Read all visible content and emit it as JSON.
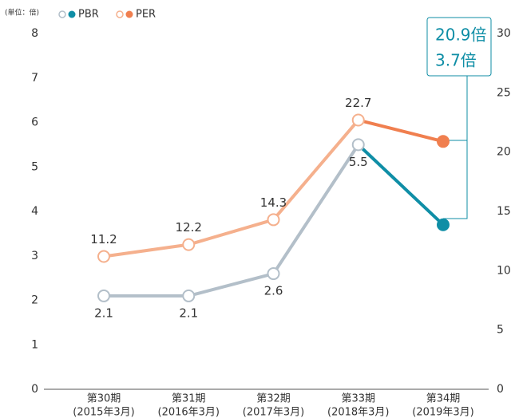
{
  "chart_data": {
    "type": "line",
    "unit_label": "(単位：倍)",
    "categories": [
      [
        "第30期",
        "(2015年3月)"
      ],
      [
        "第31期",
        "(2016年3月)"
      ],
      [
        "第32期",
        "(2017年3月)"
      ],
      [
        "第33期",
        "(2018年3月)"
      ],
      [
        "第34期",
        "(2019年3月)"
      ]
    ],
    "series": [
      {
        "name": "PBR",
        "color": "#0f8ea6",
        "past_color": "#b3bfc9",
        "axis": "y",
        "values": [
          2.1,
          2.1,
          2.6,
          5.5,
          3.7
        ],
        "value_labels": [
          "2.1",
          "2.1",
          "2.6",
          "5.5",
          "3.7倍"
        ]
      },
      {
        "name": "PER",
        "color": "#f07f4f",
        "past_color": "#f5b08d",
        "axis": "y2",
        "values": [
          11.2,
          12.2,
          14.3,
          22.7,
          20.9
        ],
        "value_labels": [
          "11.2",
          "12.2",
          "14.3",
          "22.7",
          "20.9倍"
        ]
      }
    ],
    "ylim": [
      0,
      8
    ],
    "yticks": [
      0,
      1,
      2,
      3,
      4,
      5,
      6,
      7,
      8
    ],
    "y2lim": [
      0,
      30
    ],
    "y2ticks": [
      0,
      5,
      10,
      15,
      20,
      25,
      30
    ],
    "grid": false,
    "legend": "top-left"
  }
}
